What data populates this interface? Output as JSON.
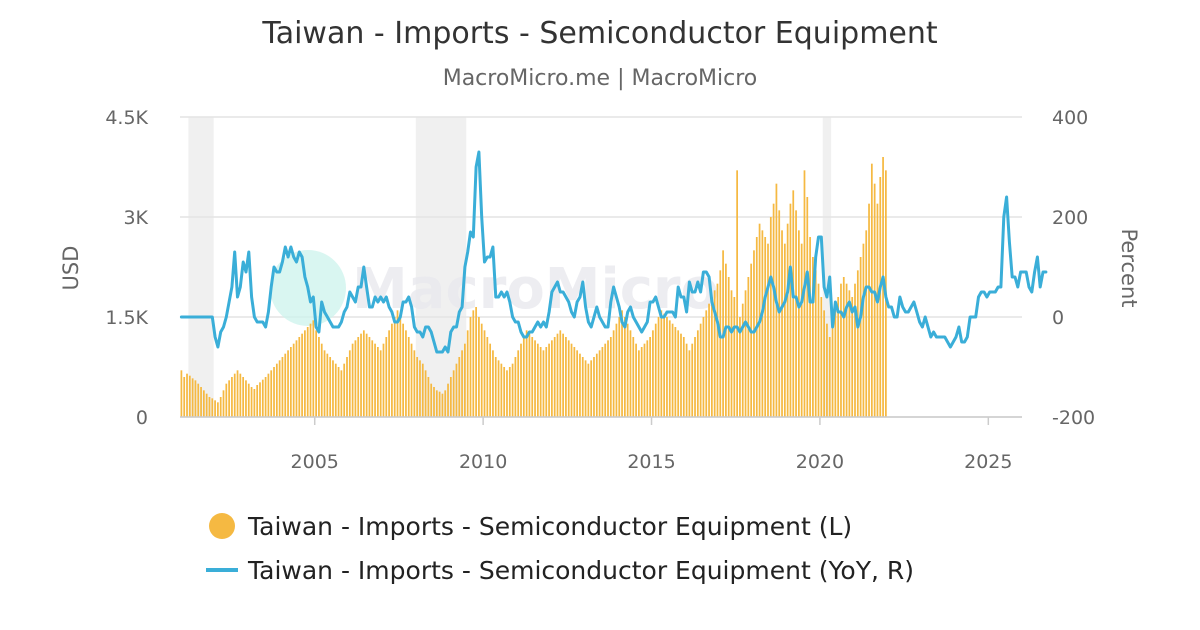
{
  "chart_data": {
    "type": "bar+line",
    "title": "Taiwan - Imports - Semiconductor Equipment",
    "subtitle": "MacroMicro.me | MacroMicro",
    "watermark": "MacroMicro",
    "y_left_label": "USD",
    "y_right_label": "Percent",
    "y_left_ticks": [
      "0",
      "1.5K",
      "3K",
      "4.5K"
    ],
    "y_left_lim": [
      0,
      4500
    ],
    "y_right_ticks": [
      "-200",
      "0",
      "200",
      "400"
    ],
    "y_right_lim": [
      -200,
      400
    ],
    "x_ticks": [
      "2005",
      "2010",
      "2015",
      "2020",
      "2025"
    ],
    "x_range": [
      "2001-01",
      "2025-12"
    ],
    "grid": true,
    "recession_shading": [
      [
        "2001-04",
        "2001-12"
      ],
      [
        "2008-01",
        "2009-06"
      ],
      [
        "2020-02",
        "2020-04"
      ]
    ],
    "colors": {
      "bars": "#f5b942",
      "line": "#3aaed8",
      "recession": "#f0f0f0",
      "grid": "#e4e4e4"
    },
    "legend": [
      {
        "name": "Taiwan - Imports - Semiconductor Equipment (L)",
        "symbol": "circle",
        "color": "#f5b942"
      },
      {
        "name": "Taiwan - Imports - Semiconductor Equipment (YoY, R)",
        "symbol": "line",
        "color": "#3aaed8"
      }
    ],
    "legend_position": "bottom",
    "bar_series": {
      "name": "Taiwan - Imports - Semiconductor Equipment (L)",
      "start": "2001-01",
      "frequency": "monthly",
      "values": [
        700,
        600,
        650,
        620,
        580,
        550,
        500,
        450,
        400,
        350,
        300,
        280,
        250,
        220,
        300,
        400,
        500,
        550,
        600,
        650,
        700,
        650,
        600,
        550,
        500,
        450,
        420,
        480,
        520,
        560,
        600,
        650,
        700,
        750,
        800,
        850,
        900,
        950,
        1000,
        1050,
        1100,
        1150,
        1200,
        1250,
        1300,
        1350,
        1400,
        1450,
        1300,
        1200,
        1100,
        1000,
        950,
        900,
        850,
        800,
        750,
        700,
        800,
        900,
        1000,
        1100,
        1150,
        1200,
        1250,
        1300,
        1250,
        1200,
        1150,
        1100,
        1050,
        1000,
        1100,
        1200,
        1300,
        1400,
        1500,
        1600,
        1500,
        1400,
        1300,
        1200,
        1100,
        1000,
        900,
        850,
        800,
        700,
        600,
        500,
        450,
        400,
        380,
        350,
        400,
        500,
        600,
        700,
        800,
        900,
        1000,
        1100,
        1300,
        1500,
        1600,
        1650,
        1500,
        1400,
        1300,
        1200,
        1100,
        1000,
        900,
        850,
        800,
        750,
        700,
        750,
        800,
        900,
        1000,
        1100,
        1200,
        1300,
        1250,
        1200,
        1150,
        1100,
        1050,
        1000,
        1050,
        1100,
        1150,
        1200,
        1250,
        1300,
        1250,
        1200,
        1150,
        1100,
        1050,
        1000,
        950,
        900,
        850,
        800,
        850,
        900,
        950,
        1000,
        1050,
        1100,
        1150,
        1200,
        1300,
        1400,
        1500,
        1600,
        1500,
        1400,
        1300,
        1200,
        1100,
        1000,
        1050,
        1100,
        1150,
        1200,
        1300,
        1400,
        1500,
        1600,
        1550,
        1500,
        1450,
        1400,
        1350,
        1300,
        1250,
        1200,
        1100,
        1000,
        1100,
        1200,
        1300,
        1400,
        1500,
        1600,
        1700,
        1800,
        1900,
        2000,
        2200,
        2500,
        2300,
        2100,
        1900,
        1800,
        3700,
        1500,
        1700,
        1900,
        2100,
        2300,
        2500,
        2700,
        2900,
        2800,
        2700,
        2600,
        3000,
        3200,
        3500,
        3100,
        2800,
        2600,
        2900,
        3200,
        3400,
        3100,
        2800,
        2600,
        3700,
        3300,
        2700,
        2400,
        2200,
        2000,
        1800,
        1600,
        1400,
        1200,
        1400,
        1600,
        1800,
        2000,
        2100,
        2000,
        1900,
        1800,
        2000,
        2200,
        2400,
        2600,
        2800,
        3200,
        3800,
        3500,
        3200,
        3600,
        3900,
        3700
      ]
    },
    "line_series": {
      "name": "Taiwan - Imports - Semiconductor Equipment (YoY, R)",
      "start": "2001-01",
      "frequency": "monthly",
      "values": [
        0,
        0,
        0,
        0,
        0,
        0,
        0,
        0,
        0,
        0,
        0,
        0,
        -40,
        -60,
        -30,
        -20,
        0,
        30,
        60,
        130,
        40,
        60,
        110,
        90,
        130,
        40,
        0,
        -10,
        -10,
        -10,
        -20,
        10,
        60,
        100,
        90,
        90,
        110,
        140,
        120,
        140,
        120,
        110,
        130,
        120,
        80,
        60,
        30,
        40,
        -20,
        -30,
        30,
        10,
        0,
        -10,
        -20,
        -20,
        -20,
        -10,
        10,
        20,
        50,
        40,
        30,
        60,
        60,
        100,
        60,
        20,
        20,
        40,
        30,
        40,
        30,
        40,
        20,
        10,
        -10,
        -10,
        0,
        30,
        30,
        40,
        20,
        -20,
        -30,
        -30,
        -40,
        -20,
        -20,
        -30,
        -50,
        -70,
        -70,
        -70,
        -60,
        -70,
        -30,
        -20,
        -20,
        10,
        20,
        100,
        130,
        170,
        160,
        300,
        330,
        200,
        110,
        120,
        120,
        140,
        40,
        40,
        50,
        40,
        50,
        30,
        0,
        -10,
        -10,
        -30,
        -40,
        -40,
        -30,
        -30,
        -20,
        -10,
        -20,
        -10,
        -20,
        10,
        50,
        60,
        70,
        50,
        50,
        40,
        30,
        10,
        0,
        30,
        40,
        70,
        20,
        -10,
        -20,
        0,
        20,
        0,
        -10,
        -20,
        -20,
        30,
        60,
        40,
        20,
        -10,
        -20,
        10,
        20,
        0,
        -10,
        -20,
        -30,
        -20,
        -10,
        30,
        30,
        40,
        20,
        0,
        0,
        10,
        10,
        10,
        0,
        60,
        40,
        40,
        10,
        70,
        50,
        50,
        70,
        50,
        90,
        90,
        80,
        30,
        10,
        -10,
        -40,
        -40,
        -20,
        -20,
        -30,
        -20,
        -20,
        -30,
        -20,
        -10,
        -20,
        -30,
        -30,
        -20,
        -10,
        10,
        40,
        60,
        80,
        60,
        30,
        10,
        20,
        30,
        50,
        100,
        40,
        40,
        20,
        30,
        60,
        90,
        30,
        30,
        120,
        160,
        160,
        60,
        40,
        80,
        -20,
        30,
        10,
        10,
        0,
        20,
        30,
        10,
        20,
        -20,
        0,
        40,
        60,
        60,
        50,
        50,
        30,
        60,
        80,
        40,
        20,
        20,
        0,
        0,
        40,
        20,
        10,
        10,
        20,
        30,
        10,
        -10,
        -20,
        0,
        -20,
        -40,
        -30,
        -40,
        -40,
        -40,
        -40,
        -50,
        -60,
        -50,
        -40,
        -20,
        -50,
        -50,
        -40,
        0,
        0,
        0,
        40,
        50,
        50,
        40,
        50,
        50,
        50,
        60,
        60,
        200,
        240,
        150,
        80,
        80,
        60,
        90,
        90,
        90,
        60,
        50,
        90,
        120,
        60,
        90,
        90
      ]
    }
  }
}
